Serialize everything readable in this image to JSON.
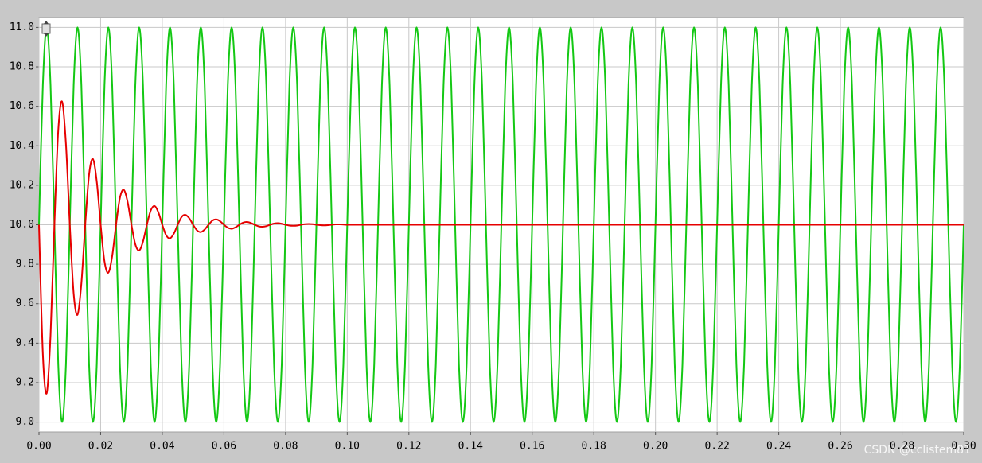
{
  "chart_data": {
    "type": "line",
    "x": [
      0,
      0.00125,
      0.0025,
      0.00375,
      0.005,
      0.00625,
      0.0075,
      0.00875,
      0.01,
      0.01125,
      0.0125,
      0.01375,
      0.015,
      0.01625,
      0.0175,
      0.01875,
      0.02,
      0.02125,
      0.0225,
      0.02375,
      0.025,
      0.02625,
      0.0275,
      0.02875,
      0.03,
      0.03125,
      0.0325,
      0.03375,
      0.035,
      0.03625,
      0.0375,
      0.03875,
      0.04,
      0.04125,
      0.0425,
      0.04375,
      0.045,
      0.04625,
      0.0475,
      0.04875,
      0.05,
      0.05125,
      0.0525,
      0.05375,
      0.055,
      0.05625,
      0.0575,
      0.05875,
      0.06,
      0.06125,
      0.0625,
      0.06375,
      0.065,
      0.06625,
      0.0675,
      0.06875,
      0.07,
      0.07125,
      0.0725,
      0.07375,
      0.075,
      0.07625,
      0.0775,
      0.07875,
      0.08,
      0.08125,
      0.0825,
      0.08375,
      0.085,
      0.08625,
      0.0875,
      0.08875,
      0.09,
      0.09125,
      0.0925,
      0.09375,
      0.095,
      0.09625,
      0.0975,
      0.09875,
      0.1,
      0.10125,
      0.1025,
      0.10375,
      0.105,
      0.10625,
      0.1075,
      0.10875,
      0.11,
      0.11125,
      0.1125,
      0.11375,
      0.115,
      0.11625,
      0.1175,
      0.11875,
      0.12,
      0.12125,
      0.1225,
      0.12375,
      0.125,
      0.12625,
      0.1275,
      0.12875,
      0.13,
      0.13125,
      0.1325,
      0.13375,
      0.135,
      0.13625,
      0.1375,
      0.13875,
      0.14,
      0.14125,
      0.1425,
      0.14375,
      0.145,
      0.14625,
      0.1475,
      0.14875,
      0.15,
      0.15125,
      0.1525,
      0.15375,
      0.155,
      0.15625,
      0.1575,
      0.15875,
      0.16,
      0.16125,
      0.1625,
      0.16375,
      0.165,
      0.16625,
      0.1675,
      0.16875,
      0.17,
      0.17125,
      0.1725,
      0.17375,
      0.175,
      0.17625,
      0.1775,
      0.17875,
      0.18,
      0.18125,
      0.1825,
      0.18375,
      0.185,
      0.18625,
      0.1875,
      0.18875,
      0.19,
      0.19125,
      0.1925,
      0.19375,
      0.195,
      0.19625,
      0.1975,
      0.19875,
      0.2,
      0.20125,
      0.2025,
      0.20375,
      0.205,
      0.20625,
      0.2075,
      0.20875,
      0.21,
      0.21125,
      0.2125,
      0.21375,
      0.215,
      0.21625,
      0.2175,
      0.21875,
      0.22,
      0.22125,
      0.2225,
      0.22375,
      0.225,
      0.22625,
      0.2275,
      0.22875,
      0.23,
      0.23125,
      0.2325,
      0.23375,
      0.235,
      0.23625,
      0.2375,
      0.23875,
      0.24,
      0.24125,
      0.2425,
      0.24375,
      0.245,
      0.24625,
      0.2475,
      0.24875,
      0.25,
      0.25125,
      0.2525,
      0.25375,
      0.255,
      0.25625,
      0.2575,
      0.25875,
      0.26,
      0.26125,
      0.2625,
      0.26375,
      0.265,
      0.26625,
      0.2675,
      0.26875,
      0.27,
      0.27125,
      0.2725,
      0.27375,
      0.275,
      0.27625,
      0.2775,
      0.27875,
      0.28,
      0.28125,
      0.2825,
      0.28375,
      0.285,
      0.28625,
      0.2875,
      0.28875,
      0.29,
      0.29125,
      0.2925,
      0.29375,
      0.295,
      0.29625,
      0.2975,
      0.29875,
      0.3
    ],
    "series": [
      {
        "color": "#14c814",
        "values": [
          10,
          10.707,
          11,
          10.707,
          10,
          9.293,
          9,
          9.293,
          10,
          10.707,
          11,
          10.707,
          10,
          9.293,
          9,
          9.293,
          10,
          10.707,
          11,
          10.707,
          10,
          9.293,
          9,
          9.293,
          10,
          10.707,
          11,
          10.707,
          10,
          9.293,
          9,
          9.293,
          10,
          10.707,
          11,
          10.707,
          10,
          9.293,
          9,
          9.293,
          10,
          10.707,
          11,
          10.707,
          10,
          9.293,
          9,
          9.293,
          10,
          10.707,
          11,
          10.707,
          10,
          9.293,
          9,
          9.293,
          10,
          10.707,
          11,
          10.707,
          10,
          9.293,
          9,
          9.293,
          10,
          10.707,
          11,
          10.707,
          10,
          9.293,
          9,
          9.293,
          10,
          10.707,
          11,
          10.707,
          10,
          9.293,
          9,
          9.293,
          10,
          10.707,
          11,
          10.707,
          10,
          9.293,
          9,
          9.293,
          10,
          10.707,
          11,
          10.707,
          10,
          9.293,
          9,
          9.293,
          10,
          10.707,
          11,
          10.707,
          10,
          9.293,
          9,
          9.293,
          10,
          10.707,
          11,
          10.707,
          10,
          9.293,
          9,
          9.293,
          10,
          10.707,
          11,
          10.707,
          10,
          9.293,
          9,
          9.293,
          10,
          10.707,
          11,
          10.707,
          10,
          9.293,
          9,
          9.293,
          10,
          10.707,
          11,
          10.707,
          10,
          9.293,
          9,
          9.293,
          10,
          10.707,
          11,
          10.707,
          10,
          9.293,
          9,
          9.293,
          10,
          10.707,
          11,
          10.707,
          10,
          9.293,
          9,
          9.293,
          10,
          10.707,
          11,
          10.707,
          10,
          9.293,
          9,
          9.293,
          10,
          10.707,
          11,
          10.707,
          10,
          9.293,
          9,
          9.293,
          10,
          10.707,
          11,
          10.707,
          10,
          9.293,
          9,
          9.293,
          10,
          10.707,
          11,
          10.707,
          10,
          9.293,
          9,
          9.293,
          10,
          10.707,
          11,
          10.707,
          10,
          9.293,
          9,
          9.293,
          10,
          10.707,
          11,
          10.707,
          10,
          9.293,
          9,
          9.293,
          10,
          10.707,
          11,
          10.707,
          10,
          9.293,
          9,
          9.293,
          10,
          10.707,
          11,
          10.707,
          10,
          9.293,
          9,
          9.293,
          10,
          10.707,
          11,
          10.707,
          10,
          9.293,
          9,
          9.293,
          10,
          10.707,
          11,
          10.707,
          10,
          9.293,
          9,
          9.293,
          10,
          10.707,
          11,
          10.707,
          10,
          9.293,
          9,
          9.293,
          10
        ]
      },
      {
        "color": "#e60000",
        "values": [
          10,
          9.346,
          9.146,
          9.441,
          10,
          10.477,
          10.624,
          10.408,
          10,
          9.651,
          9.544,
          9.702,
          10,
          10.254,
          10.333,
          10.218,
          10,
          9.814,
          9.757,
          9.841,
          10,
          10.136,
          10.177,
          10.116,
          10,
          9.901,
          9.87,
          9.915,
          10,
          10.072,
          10.095,
          10.062,
          10,
          9.947,
          9.931,
          9.955,
          10,
          10.039,
          10.05,
          10.033,
          10,
          9.972,
          9.963,
          9.976,
          10,
          10.021,
          10.027,
          10.018,
          10,
          9.985,
          9.98,
          9.987,
          10,
          10.011,
          10.014,
          10.009,
          10,
          9.992,
          9.99,
          9.993,
          10,
          10.006,
          10.008,
          10.005,
          10,
          9.996,
          9.995,
          9.996,
          10,
          10.003,
          10.004,
          10.003,
          10,
          9.998,
          9.997,
          9.998,
          10,
          10.002,
          10.002,
          10.001,
          10,
          10,
          10,
          10,
          10,
          10,
          10,
          10,
          10,
          10,
          10,
          10,
          10,
          10,
          10,
          10,
          10,
          10,
          10,
          10,
          10,
          10,
          10,
          10,
          10,
          10,
          10,
          10,
          10,
          10,
          10,
          10,
          10,
          10,
          10,
          10,
          10,
          10,
          10,
          10,
          10,
          10,
          10,
          10,
          10,
          10,
          10,
          10,
          10,
          10,
          10,
          10,
          10,
          10,
          10,
          10,
          10,
          10,
          10,
          10,
          10,
          10,
          10,
          10,
          10,
          10,
          10,
          10,
          10,
          10,
          10,
          10,
          10,
          10,
          10,
          10,
          10,
          10,
          10,
          10,
          10,
          10,
          10,
          10,
          10,
          10,
          10,
          10,
          10,
          10,
          10,
          10,
          10,
          10,
          10,
          10,
          10,
          10,
          10,
          10,
          10,
          10,
          10,
          10,
          10,
          10,
          10,
          10,
          10,
          10,
          10,
          10,
          10,
          10,
          10,
          10,
          10,
          10,
          10,
          10,
          10,
          10,
          10,
          10,
          10,
          10,
          10,
          10,
          10,
          10,
          10,
          10,
          10,
          10,
          10,
          10,
          10,
          10,
          10,
          10,
          10,
          10,
          10,
          10,
          10,
          10,
          10,
          10,
          10,
          10,
          10,
          10,
          10,
          10,
          10,
          10,
          10,
          10,
          10,
          10,
          10
        ]
      }
    ],
    "xlim": [
      0,
      0.3
    ],
    "xticks": [
      {
        "value": 0,
        "label": "0.00"
      },
      0.02,
      0.04,
      0.06,
      0.08,
      {
        "value": 0.1,
        "label": "0.10"
      },
      0.12,
      0.14,
      0.16,
      0.18,
      {
        "value": 0.2,
        "label": "0.20"
      },
      0.22,
      0.24,
      0.26,
      0.28,
      {
        "value": 0.3,
        "label": "0.30"
      }
    ],
    "ylim": [
      8.95,
      11.05
    ],
    "yticks": [
      {
        "value": 9,
        "label": "9.0"
      },
      9.2,
      9.4,
      9.6,
      9.8,
      {
        "value": 10,
        "label": "10.0"
      },
      10.2,
      10.4,
      10.6,
      10.8,
      {
        "value": 11,
        "label": "11.0"
      }
    ],
    "grid": true,
    "watermark": "CSDN @cclistem81"
  }
}
